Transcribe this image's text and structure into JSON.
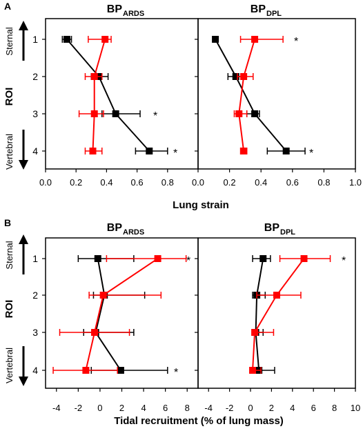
{
  "chart_data": [
    {
      "type": "scatter",
      "panel_letter": "A",
      "xlabel": "Lung strain",
      "ylabel": "ROI",
      "y_categories": [
        "1",
        "2",
        "3",
        "4"
      ],
      "y_top_label": "Sternal",
      "y_bottom_label": "Vertebral",
      "subplots": [
        {
          "title_main": "BP",
          "title_sub": "ARDS",
          "xlim": [
            0.0,
            1.0
          ],
          "xticks": [
            "0.0",
            "0.2",
            "0.4",
            "0.6",
            "0.8"
          ],
          "series": [
            {
              "color": "#000000",
              "roi": [
                1,
                2,
                3,
                4
              ],
              "mean": [
                0.14,
                0.35,
                0.46,
                0.68
              ],
              "err_lo": [
                0.11,
                0.3,
                0.37,
                0.59
              ],
              "err_hi": [
                0.17,
                0.41,
                0.62,
                0.8
              ]
            },
            {
              "color": "#ff0000",
              "roi": [
                1,
                2,
                3,
                4
              ],
              "mean": [
                0.39,
                0.32,
                0.32,
                0.31
              ],
              "err_lo": [
                0.28,
                0.26,
                0.22,
                0.26
              ],
              "err_hi": [
                0.43,
                0.37,
                0.38,
                0.37
              ]
            }
          ],
          "significance": [
            "",
            "",
            "*",
            "*"
          ]
        },
        {
          "title_main": "BP",
          "title_sub": "DPL",
          "xlim": [
            0.0,
            1.0
          ],
          "xticks": [
            "0.0",
            "0.2",
            "0.4",
            "0.6",
            "0.8",
            "1.0"
          ],
          "series": [
            {
              "color": "#000000",
              "roi": [
                1,
                2,
                3,
                4
              ],
              "mean": [
                0.11,
                0.24,
                0.36,
                0.56
              ],
              "err_lo": [
                0.1,
                0.19,
                0.31,
                0.44
              ],
              "err_hi": [
                0.12,
                0.28,
                0.39,
                0.68
              ]
            },
            {
              "color": "#ff0000",
              "roi": [
                1,
                2,
                3,
                4
              ],
              "mean": [
                0.36,
                0.29,
                0.26,
                0.29
              ],
              "err_lo": [
                0.27,
                0.25,
                0.23,
                0.27
              ],
              "err_hi": [
                0.54,
                0.35,
                0.31,
                0.31
              ]
            }
          ],
          "significance": [
            "*",
            "",
            "",
            "*"
          ]
        }
      ]
    },
    {
      "type": "scatter",
      "panel_letter": "B",
      "xlabel": "Tidal recruitment  (% of lung mass)",
      "ylabel": "ROI",
      "y_categories": [
        "1",
        "2",
        "3",
        "4"
      ],
      "y_top_label": "Sternal",
      "y_bottom_label": "Vertebral",
      "subplots": [
        {
          "title_main": "BP",
          "title_sub": "ARDS",
          "xlim": [
            -5,
            9
          ],
          "xticks": [
            "-4",
            "-2",
            "0",
            "2",
            "4",
            "6",
            "8"
          ],
          "xtick_values": [
            -4,
            -2,
            0,
            2,
            4,
            6,
            8
          ],
          "series": [
            {
              "color": "#000000",
              "roi": [
                1,
                2,
                3,
                4
              ],
              "mean": [
                -0.2,
                0.4,
                -0.4,
                1.9
              ],
              "err_lo": [
                -2.0,
                -0.6,
                -1.5,
                -0.8
              ],
              "err_hi": [
                3.1,
                4.1,
                3.1,
                6.2
              ]
            },
            {
              "color": "#ff0000",
              "roi": [
                1,
                2,
                3,
                4
              ],
              "mean": [
                5.3,
                0.3,
                -0.5,
                -1.3
              ],
              "err_lo": [
                0.6,
                -1.0,
                -3.7,
                -4.3
              ],
              "err_hi": [
                7.9,
                5.6,
                2.7,
                1.6
              ]
            }
          ],
          "significance": [
            "*",
            "",
            "",
            "*"
          ]
        },
        {
          "title_main": "BP",
          "title_sub": "DPL",
          "xlim": [
            -5,
            10
          ],
          "xticks": [
            "-4",
            "-2",
            "0",
            "2",
            "4",
            "6",
            "8",
            "10"
          ],
          "xtick_values": [
            -4,
            -2,
            0,
            2,
            4,
            6,
            8,
            10
          ],
          "series": [
            {
              "color": "#000000",
              "roi": [
                1,
                2,
                3,
                4
              ],
              "mean": [
                1.2,
                0.6,
                0.5,
                0.8
              ],
              "err_lo": [
                0.2,
                0.2,
                0.2,
                0.2
              ],
              "err_hi": [
                1.9,
                1.4,
                1.2,
                2.3
              ]
            },
            {
              "color": "#ff0000",
              "roi": [
                1,
                2,
                3,
                4
              ],
              "mean": [
                5.1,
                2.5,
                0.4,
                0.2
              ],
              "err_lo": [
                2.8,
                0.6,
                0.2,
                0.0
              ],
              "err_hi": [
                7.6,
                4.8,
                2.2,
                1.0
              ]
            }
          ],
          "significance": [
            "*",
            "",
            "",
            ""
          ]
        }
      ]
    }
  ]
}
